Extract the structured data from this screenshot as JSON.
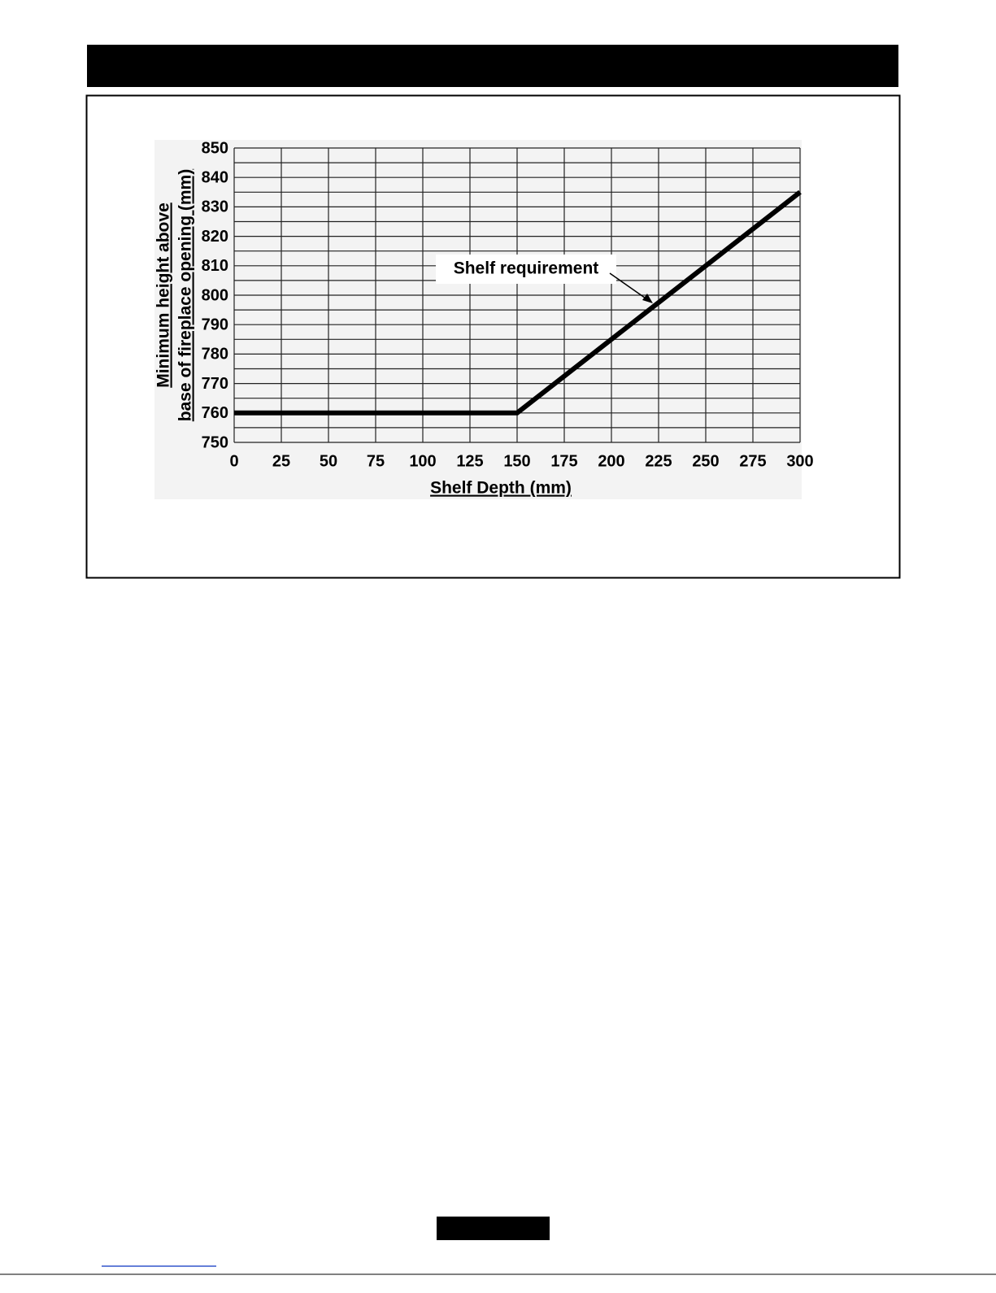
{
  "chart_data": {
    "type": "line",
    "annotation": "Shelf requirement",
    "xlabel": "Shelf Depth (mm)",
    "ylabel": [
      "Minimum height above",
      "base of fireplace opening (mm)"
    ],
    "x": [
      0,
      150,
      300
    ],
    "values": [
      760,
      760,
      835
    ],
    "color": "#000000",
    "xlim": [
      0,
      300
    ],
    "ylim": [
      750,
      850
    ],
    "xticks": [
      0,
      25,
      50,
      75,
      100,
      125,
      150,
      175,
      200,
      225,
      250,
      275,
      300
    ],
    "yticks": [
      750,
      760,
      770,
      780,
      790,
      800,
      810,
      820,
      830,
      840,
      850
    ],
    "yminor": [
      755,
      765,
      775,
      785,
      795,
      805,
      815,
      825,
      835,
      845
    ],
    "grid": true
  }
}
